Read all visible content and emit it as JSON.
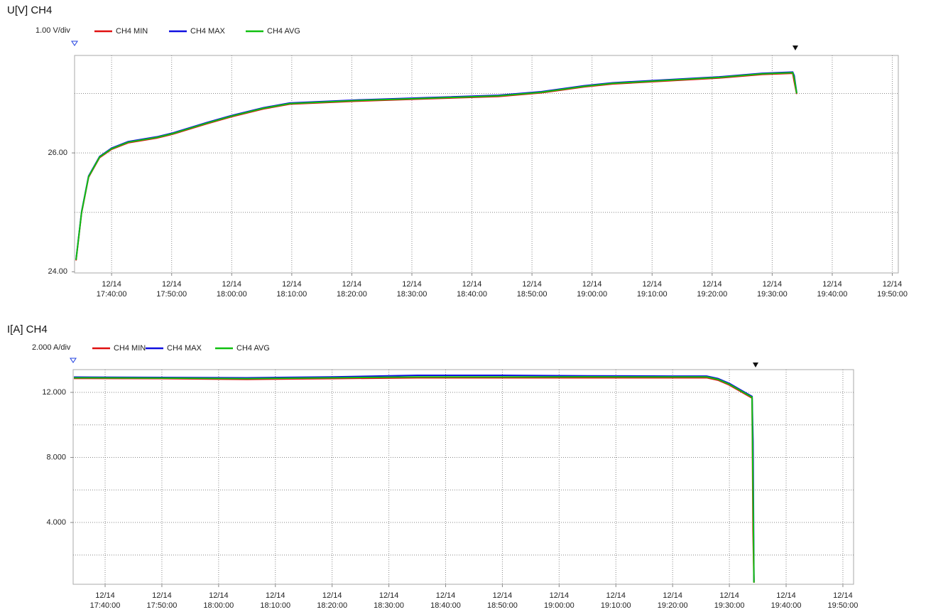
{
  "chart_data": [
    {
      "type": "line",
      "title": "U[V] CH4",
      "scale_label": "1.00 V/div",
      "x": [
        "17:34:05",
        "17:35:00",
        "17:36:10",
        "17:38:00",
        "17:40:00",
        "17:42:45",
        "17:47:30",
        "17:50:00",
        "17:55:50",
        "18:00:00",
        "18:05:15",
        "18:09:40",
        "18:20:40",
        "18:32:30",
        "18:44:25",
        "18:51:30",
        "18:58:40",
        "19:03:25",
        "19:14:00",
        "19:21:10",
        "19:28:20",
        "19:33:25",
        "19:33:40",
        "19:34:05"
      ],
      "series": [
        {
          "name": "CH4 MIN",
          "color": "#e01010",
          "values": [
            24.19,
            24.99,
            25.59,
            25.92,
            26.06,
            26.17,
            26.25,
            26.31,
            26.49,
            26.61,
            26.74,
            26.82,
            26.87,
            26.91,
            26.95,
            27.01,
            27.11,
            27.16,
            27.22,
            27.26,
            27.32,
            27.34,
            27.2,
            26.99
          ]
        },
        {
          "name": "CH4 MAX",
          "color": "#1010e0",
          "values": [
            24.21,
            25.01,
            25.61,
            25.94,
            26.08,
            26.19,
            26.27,
            26.33,
            26.51,
            26.63,
            26.76,
            26.84,
            26.89,
            26.93,
            26.97,
            27.03,
            27.13,
            27.18,
            27.24,
            27.28,
            27.34,
            27.36,
            27.3,
            27.01
          ]
        },
        {
          "name": "CH4 AVG",
          "color": "#10c010",
          "values": [
            24.2,
            25.0,
            25.6,
            25.93,
            26.07,
            26.18,
            26.26,
            26.32,
            26.5,
            26.62,
            26.75,
            26.83,
            26.88,
            26.92,
            26.96,
            27.02,
            27.12,
            27.17,
            27.23,
            27.27,
            27.33,
            27.35,
            27.26,
            27.0
          ]
        }
      ],
      "xlim": [
        "17:33:50",
        "19:51:00"
      ],
      "xticks": [
        "12/14\n17:40:00",
        "12/14\n17:50:00",
        "12/14\n18:00:00",
        "12/14\n18:10:00",
        "12/14\n18:20:00",
        "12/14\n18:30:00",
        "12/14\n18:40:00",
        "12/14\n18:50:00",
        "12/14\n19:00:00",
        "12/14\n19:10:00",
        "12/14\n19:20:00",
        "12/14\n19:30:00",
        "12/14\n19:40:00",
        "12/14\n19:50:00"
      ],
      "ylim": [
        23.98,
        27.64
      ],
      "yticks": [
        {
          "value": 24,
          "label": "24.00"
        },
        {
          "value": 26,
          "label": "26.00"
        }
      ],
      "ygrid": [
        25,
        26,
        27
      ],
      "grid": true
    },
    {
      "type": "line",
      "title": "I[A] CH4",
      "scale_label": "2.000 A/div",
      "x": [
        "17:34:30",
        "17:50:00",
        "18:05:00",
        "18:20:00",
        "18:35:00",
        "18:50:00",
        "19:05:00",
        "19:20:00",
        "19:26:00",
        "19:28:00",
        "19:30:00",
        "19:32:00",
        "19:34:00",
        "19:34:10",
        "19:34:20"
      ],
      "series": [
        {
          "name": "CH4 MIN",
          "color": "#e01010",
          "values": [
            12.86,
            12.85,
            12.8,
            12.85,
            12.9,
            12.9,
            12.9,
            12.9,
            12.9,
            12.75,
            12.45,
            12.05,
            11.65,
            3.5,
            0.3
          ]
        },
        {
          "name": "CH4 MAX",
          "color": "#1010e0",
          "values": [
            12.94,
            12.92,
            12.9,
            12.95,
            13.05,
            13.05,
            13.02,
            13.0,
            13.0,
            12.85,
            12.55,
            12.15,
            11.75,
            9.0,
            0.35
          ]
        },
        {
          "name": "CH4 AVG",
          "color": "#10c010",
          "values": [
            12.9,
            12.88,
            12.85,
            12.9,
            12.95,
            12.95,
            12.96,
            12.95,
            12.95,
            12.8,
            12.5,
            12.1,
            11.7,
            6.0,
            0.3
          ]
        }
      ],
      "xlim": [
        "17:34:22",
        "19:51:53"
      ],
      "xticks": [
        "12/14\n17:40:00",
        "12/14\n17:50:00",
        "12/14\n18:00:00",
        "12/14\n18:10:00",
        "12/14\n18:20:00",
        "12/14\n18:30:00",
        "12/14\n18:40:00",
        "12/14\n18:50:00",
        "12/14\n19:00:00",
        "12/14\n19:10:00",
        "12/14\n19:20:00",
        "12/14\n19:30:00",
        "12/14\n19:40:00",
        "12/14\n19:50:00"
      ],
      "ylim": [
        0.2,
        13.4
      ],
      "yticks": [
        {
          "value": 4,
          "label": "4.000"
        },
        {
          "value": 8,
          "label": "8.000"
        },
        {
          "value": 12,
          "label": "12.000"
        }
      ],
      "ygrid": [
        2,
        4,
        6,
        8,
        10,
        12
      ],
      "grid": true
    }
  ]
}
